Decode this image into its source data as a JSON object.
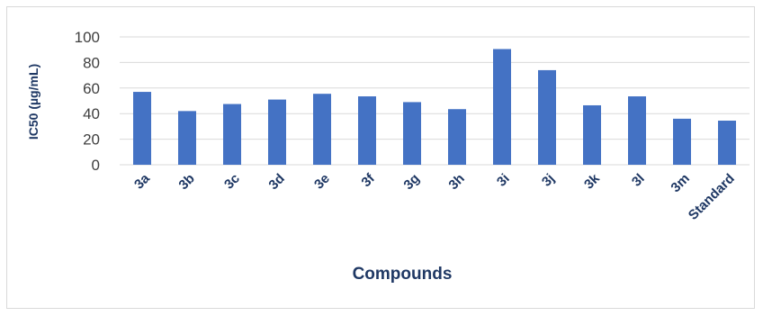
{
  "chart_data": {
    "type": "bar",
    "title": "",
    "xlabel": "Compounds",
    "ylabel": "IC50 (µg/mL)",
    "categories": [
      "3a",
      "3b",
      "3c",
      "3d",
      "3e",
      "3f",
      "3g",
      "3h",
      "3i",
      "3j",
      "3k",
      "3l",
      "3m",
      "Standard"
    ],
    "values": [
      57,
      42,
      47.5,
      51,
      55.5,
      53.5,
      49,
      43.5,
      90.5,
      74,
      46.5,
      53.5,
      36,
      34.5
    ],
    "ylim": [
      0,
      100
    ],
    "yticks": [
      0,
      20,
      40,
      60,
      80,
      100
    ],
    "grid": true,
    "legend": "none",
    "bar_color": "#4472c4",
    "grid_color": "#d9d9d9",
    "label_color": "#1f3864"
  }
}
